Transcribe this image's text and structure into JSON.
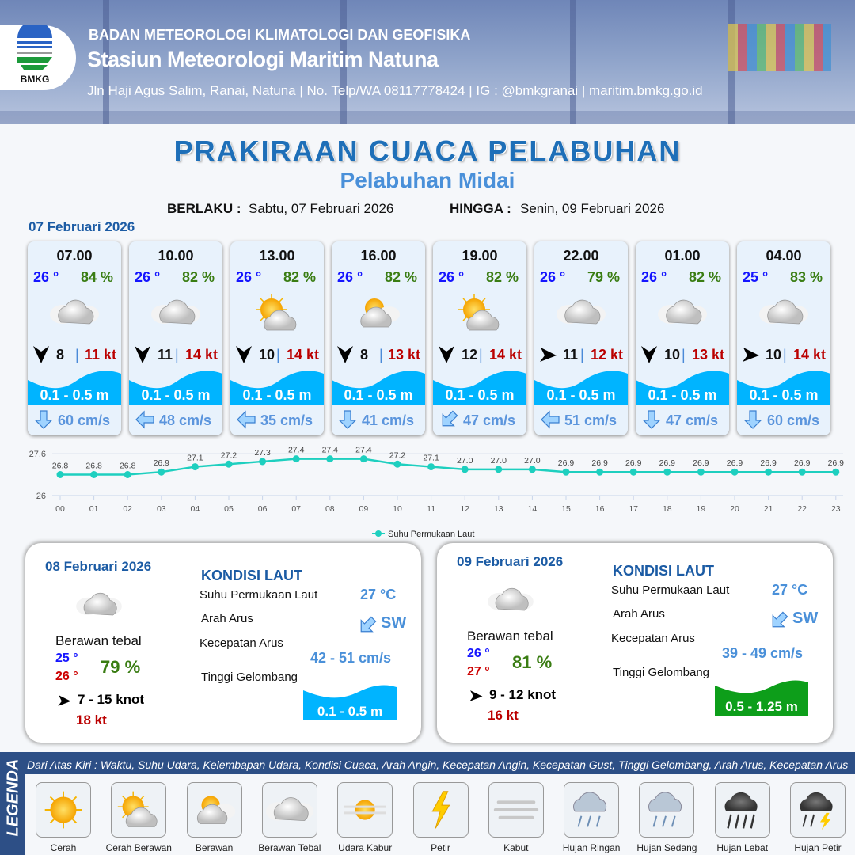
{
  "header": {
    "org": "BADAN METEOROLOGI KLIMATOLOGI DAN GEOFISIKA",
    "station": "Stasiun Meteorologi Maritim Natuna",
    "contact": "Jln Haji Agus Salim, Ranai, Natuna  | No. Telp/WA 08117778424 | IG : @bmkgranai | maritim.bmkg.go.id",
    "logo_text": "BMKG"
  },
  "title": "PRAKIRAAN CUACA PELABUHAN",
  "subtitle": "Pelabuhan Midai",
  "validity": {
    "from_label": "BERLAKU :",
    "from": "Sabtu, 07 Februari 2026",
    "to_label": "HINGGA :",
    "to": "Senin, 09 Februari 2026"
  },
  "day1_label": "07 Februari 2026",
  "hourly": [
    {
      "time": "07.00",
      "temp": "26 °",
      "hum": "84 %",
      "wx": "berawan-tebal",
      "wind_dir": "N",
      "wind": "8",
      "gust": "11 kt",
      "wave": "0.1 - 0.5 m",
      "curr_dir": "S",
      "curr": "60 cm/s"
    },
    {
      "time": "10.00",
      "temp": "26 °",
      "hum": "82 %",
      "wx": "berawan-tebal",
      "wind_dir": "N",
      "wind": "11",
      "gust": "14 kt",
      "wave": "0.1 - 0.5 m",
      "curr_dir": "W",
      "curr": "48 cm/s"
    },
    {
      "time": "13.00",
      "temp": "26 °",
      "hum": "82 %",
      "wx": "cerah-berawan",
      "wind_dir": "N",
      "wind": "10",
      "gust": "14 kt",
      "wave": "0.1 - 0.5 m",
      "curr_dir": "W",
      "curr": "35 cm/s"
    },
    {
      "time": "16.00",
      "temp": "26 °",
      "hum": "82 %",
      "wx": "berawan",
      "wind_dir": "N",
      "wind": "8",
      "gust": "13 kt",
      "wave": "0.1 - 0.5 m",
      "curr_dir": "S",
      "curr": "41 cm/s"
    },
    {
      "time": "19.00",
      "temp": "26 °",
      "hum": "82 %",
      "wx": "cerah-berawan",
      "wind_dir": "N",
      "wind": "12",
      "gust": "14 kt",
      "wave": "0.1 - 0.5 m",
      "curr_dir": "SW",
      "curr": "47 cm/s"
    },
    {
      "time": "22.00",
      "temp": "26 °",
      "hum": "79 %",
      "wx": "berawan-tebal",
      "wind_dir": "SW",
      "wind": "11",
      "gust": "12 kt",
      "wave": "0.1 - 0.5 m",
      "curr_dir": "W",
      "curr": "51 cm/s"
    },
    {
      "time": "01.00",
      "temp": "26 °",
      "hum": "82 %",
      "wx": "berawan-tebal",
      "wind_dir": "N",
      "wind": "10",
      "gust": "13 kt",
      "wave": "0.1 - 0.5 m",
      "curr_dir": "S",
      "curr": "47 cm/s"
    },
    {
      "time": "04.00",
      "temp": "25 °",
      "hum": "83 %",
      "wx": "berawan-tebal",
      "wind_dir": "SW",
      "wind": "10",
      "gust": "14 kt",
      "wave": "0.1 - 0.5 m",
      "curr_dir": "S",
      "curr": "60 cm/s"
    }
  ],
  "chart_data": {
    "type": "line",
    "categories": [
      "00",
      "01",
      "02",
      "03",
      "04",
      "05",
      "06",
      "07",
      "08",
      "09",
      "10",
      "11",
      "12",
      "13",
      "14",
      "15",
      "16",
      "17",
      "18",
      "19",
      "20",
      "21",
      "22",
      "23"
    ],
    "series": [
      {
        "name": "Suhu Permukaan Laut",
        "values": [
          26.8,
          26.8,
          26.8,
          26.9,
          27.1,
          27.2,
          27.3,
          27.4,
          27.4,
          27.4,
          27.2,
          27.1,
          27.0,
          27.0,
          27.0,
          26.9,
          26.9,
          26.9,
          26.9,
          26.9,
          26.9,
          26.9,
          26.9,
          26.9
        ]
      }
    ],
    "yticks": [
      "27.6",
      "26"
    ],
    "ylim": [
      26,
      27.6
    ],
    "legend": "bottom",
    "color": "#1ecfbf",
    "grid": true
  },
  "days": [
    {
      "date": "08 Februari 2026",
      "wx": "berawan-tebal",
      "wx_label": "Berawan tebal",
      "tmin": "25 °",
      "tmax": "26 °",
      "hum": "79 %",
      "wind_dir": "SW",
      "wind": "7  - 15 knot",
      "gust": "18 kt",
      "sea": {
        "title": "KONDISI LAUT",
        "sst_label": "Suhu Permukaan Laut",
        "sst": "27 °C",
        "dir_label": "Arah Arus",
        "dir": "SW",
        "spd_label": "Kecepatan Arus",
        "spd": "42 - 51 cm/s",
        "wave_label": "Tinggi Gelombang",
        "wave": "0.1 - 0.5 m",
        "wave_color": "#00b4ff"
      }
    },
    {
      "date": "09 Februari 2026",
      "wx": "berawan-tebal",
      "wx_label": "Berawan tebal",
      "tmin": "26 °",
      "tmax": "27 °",
      "hum": "81 %",
      "wind_dir": "SW",
      "wind": "9  - 12 knot",
      "gust": "16 kt",
      "sea": {
        "title": "KONDISI LAUT",
        "sst_label": "Suhu Permukaan Laut",
        "sst": "27 °C",
        "dir_label": "Arah Arus",
        "dir": "SW",
        "spd_label": "Kecepatan Arus",
        "spd": "39 - 49 cm/s",
        "wave_label": "Tinggi Gelombang",
        "wave": "0.5 - 1.25 m",
        "wave_color": "#0d9e1a"
      }
    }
  ],
  "legend": {
    "title": "LEGENDA",
    "description": "Dari Atas Kiri : Waktu, Suhu Udara, Kelembapan Udara, Kondisi Cuaca, Arah Angin, Kecepatan Angin, Kecepatan Gust, Tinggi Gelombang, Arah Arus, Kecepatan Arus",
    "items": [
      {
        "label": "Cerah",
        "icon": "sun"
      },
      {
        "label": "Cerah Berawan",
        "icon": "suncloud"
      },
      {
        "label": "Berawan",
        "icon": "berawan"
      },
      {
        "label": "Berawan Tebal",
        "icon": "cloud"
      },
      {
        "label": "Udara Kabur",
        "icon": "haze"
      },
      {
        "label": "Petir",
        "icon": "petir"
      },
      {
        "label": "Kabut",
        "icon": "kabut"
      },
      {
        "label": "Hujan Ringan",
        "icon": "rain"
      },
      {
        "label": "Hujan Sedang",
        "icon": "rain"
      },
      {
        "label": "Hujan Lebat",
        "icon": "rainheavy"
      },
      {
        "label": "Hujan Petir",
        "icon": "storm"
      }
    ]
  },
  "colors": {
    "title": "#1e6fb8",
    "wave": "#00b4ff",
    "temp": "#1515ff",
    "humidity": "#3a7d13",
    "gust": "#bb0000",
    "current": "#5b95dd"
  }
}
